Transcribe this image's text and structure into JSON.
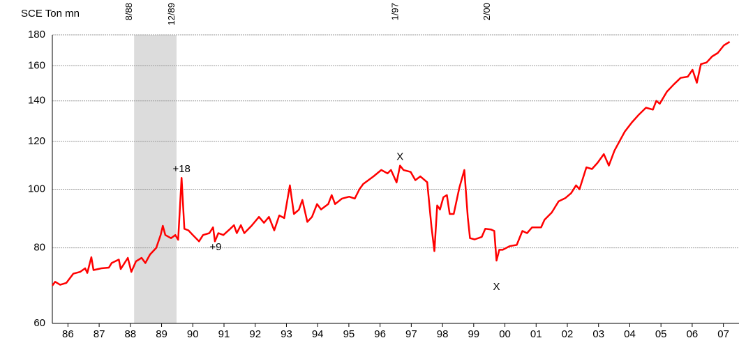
{
  "chart_data": {
    "type": "line",
    "y_label": "SCE Ton mn",
    "log_y": true,
    "grid": true,
    "ylim": [
      60,
      180
    ],
    "yticks": [
      60,
      80,
      100,
      120,
      140,
      160,
      180
    ],
    "xlim": [
      1986,
      2008
    ],
    "xticks": [
      {
        "value": 1986.5,
        "label": "86"
      },
      {
        "value": 1987.5,
        "label": "87"
      },
      {
        "value": 1988.5,
        "label": "88"
      },
      {
        "value": 1989.5,
        "label": "89"
      },
      {
        "value": 1990.5,
        "label": "90"
      },
      {
        "value": 1991.5,
        "label": "91"
      },
      {
        "value": 1992.5,
        "label": "92"
      },
      {
        "value": 1993.5,
        "label": "93"
      },
      {
        "value": 1994.5,
        "label": "94"
      },
      {
        "value": 1995.5,
        "label": "95"
      },
      {
        "value": 1996.5,
        "label": "96"
      },
      {
        "value": 1997.5,
        "label": "97"
      },
      {
        "value": 1998.5,
        "label": "98"
      },
      {
        "value": 1999.5,
        "label": "99"
      },
      {
        "value": 2000.5,
        "label": "00"
      },
      {
        "value": 2001.5,
        "label": "01"
      },
      {
        "value": 2002.5,
        "label": "02"
      },
      {
        "value": 2003.5,
        "label": "03"
      },
      {
        "value": 2004.5,
        "label": "04"
      },
      {
        "value": 2005.5,
        "label": "05"
      },
      {
        "value": 2006.5,
        "label": "06"
      },
      {
        "value": 2007.5,
        "label": "07"
      }
    ],
    "shade": {
      "x": [
        1988.62,
        1989.98
      ],
      "labels": [
        "8/88",
        "12/89"
      ],
      "color": "#dcdcdc"
    },
    "events": [
      {
        "x": 1997.14,
        "label": "1/97"
      },
      {
        "x": 2000.08,
        "label": "2/00"
      }
    ],
    "annotations": [
      {
        "text": "+18",
        "x": 1990.14,
        "y": 107.9
      },
      {
        "text": "+9",
        "x": 1991.23,
        "y": 80.1
      },
      {
        "text": "X",
        "x": 1997.14,
        "y": 112.9
      },
      {
        "text": "X",
        "x": 2000.23,
        "y": 68.9
      }
    ],
    "series": [
      {
        "color": "#ff0000",
        "x": [
          1986.0,
          1986.09,
          1986.25,
          1986.45,
          1986.67,
          1986.89,
          1987.05,
          1987.12,
          1987.25,
          1987.32,
          1987.57,
          1987.81,
          1987.9,
          1988.13,
          1988.19,
          1988.42,
          1988.53,
          1988.68,
          1988.86,
          1988.98,
          1989.13,
          1989.33,
          1989.47,
          1989.54,
          1989.62,
          1989.8,
          1989.94,
          1990.03,
          1990.14,
          1990.23,
          1990.36,
          1990.5,
          1990.7,
          1990.83,
          1991.03,
          1991.15,
          1991.21,
          1991.32,
          1991.48,
          1991.7,
          1991.82,
          1991.91,
          1992.04,
          1992.15,
          1992.38,
          1992.62,
          1992.78,
          1992.94,
          1993.11,
          1993.27,
          1993.43,
          1993.61,
          1993.74,
          1993.9,
          1994.01,
          1994.17,
          1994.32,
          1994.48,
          1994.61,
          1994.84,
          1994.95,
          1995.06,
          1995.28,
          1995.51,
          1995.69,
          1995.84,
          1995.96,
          1996.29,
          1996.54,
          1996.74,
          1996.85,
          1997.03,
          1997.14,
          1997.25,
          1997.48,
          1997.63,
          1997.79,
          1998.01,
          1998.15,
          1998.24,
          1998.33,
          1998.42,
          1998.53,
          1998.64,
          1998.73,
          1998.86,
          1999.04,
          1999.2,
          1999.31,
          1999.38,
          1999.53,
          1999.76,
          1999.87,
          2000.05,
          2000.16,
          2000.23,
          2000.32,
          2000.43,
          2000.65,
          2000.88,
          2001.06,
          2001.21,
          2001.37,
          2001.66,
          2001.77,
          2002.0,
          2002.22,
          2002.44,
          2002.62,
          2002.78,
          2002.89,
          2003.11,
          2003.29,
          2003.47,
          2003.67,
          2003.83,
          2004.01,
          2004.17,
          2004.34,
          2004.57,
          2004.79,
          2005.02,
          2005.24,
          2005.35,
          2005.46,
          2005.69,
          2005.91,
          2006.13,
          2006.36,
          2006.51,
          2006.65,
          2006.78,
          2006.96,
          2007.14,
          2007.32,
          2007.52,
          2007.7
        ],
        "values": [
          69.3,
          70.3,
          69.5,
          70,
          72.5,
          73,
          74,
          72.7,
          77.2,
          73.5,
          74,
          74.2,
          75.5,
          76.5,
          73.8,
          77,
          73,
          76,
          77,
          75.5,
          78,
          80,
          84,
          87,
          84,
          83,
          84,
          82.5,
          104.4,
          86,
          85.5,
          84,
          82,
          84,
          84.6,
          86.5,
          82,
          84.6,
          84,
          86,
          87.2,
          84.6,
          87.2,
          84.6,
          87,
          90,
          88,
          90,
          85.5,
          90.5,
          89.6,
          101.5,
          91,
          92.5,
          96,
          88.3,
          90,
          94.5,
          92.6,
          94.5,
          97.8,
          94.5,
          96.5,
          97.2,
          96.5,
          100,
          102,
          105,
          107.6,
          106.2,
          107.6,
          102.6,
          109.4,
          107.6,
          106.8,
          103.5,
          105,
          102.7,
          86.5,
          79,
          94,
          92.6,
          97,
          97.8,
          91,
          91,
          100.5,
          107.6,
          90,
          83,
          82.6,
          83.4,
          86,
          85.8,
          85.3,
          76.2,
          79.4,
          79.4,
          80.5,
          80.9,
          85.3,
          84.6,
          86.5,
          86.5,
          89,
          91.5,
          95.5,
          96.7,
          98.5,
          101.5,
          100,
          108.7,
          108,
          110.6,
          114.3,
          109.4,
          115.8,
          120,
          124.5,
          129,
          132.8,
          136.4,
          135.4,
          140,
          138.5,
          145,
          149,
          152.8,
          153.5,
          157.6,
          150,
          161,
          162,
          165.8,
          168,
          173,
          175.3
        ]
      }
    ]
  }
}
